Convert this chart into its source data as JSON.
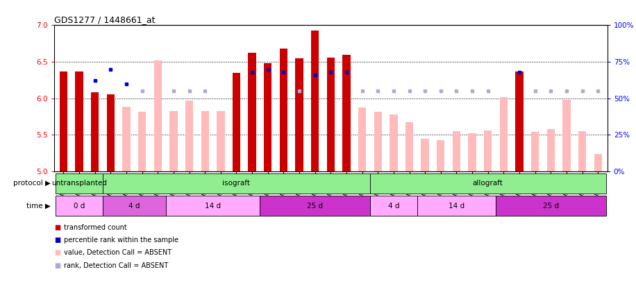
{
  "title": "GDS1277 / 1448661_at",
  "samples": [
    "GSM77008",
    "GSM77009",
    "GSM77010",
    "GSM77011",
    "GSM77012",
    "GSM77013",
    "GSM77014",
    "GSM77015",
    "GSM77016",
    "GSM77017",
    "GSM77018",
    "GSM77019",
    "GSM77020",
    "GSM77021",
    "GSM77022",
    "GSM77023",
    "GSM77024",
    "GSM77025",
    "GSM77026",
    "GSM77027",
    "GSM77028",
    "GSM77029",
    "GSM77030",
    "GSM77031",
    "GSM77032",
    "GSM77033",
    "GSM77034",
    "GSM77035",
    "GSM77036",
    "GSM77037",
    "GSM77038",
    "GSM77039",
    "GSM77040",
    "GSM77041",
    "GSM77042"
  ],
  "red_values": [
    6.37,
    6.37,
    6.08,
    6.05,
    null,
    null,
    null,
    null,
    null,
    null,
    null,
    6.35,
    6.62,
    6.48,
    6.68,
    6.55,
    6.93,
    6.56,
    6.6,
    null,
    null,
    null,
    null,
    null,
    null,
    null,
    null,
    null,
    null,
    6.37,
    null,
    null,
    null,
    null,
    null
  ],
  "pink_values": [
    null,
    null,
    null,
    null,
    5.88,
    5.82,
    6.52,
    5.83,
    5.97,
    5.83,
    5.83,
    null,
    null,
    null,
    null,
    null,
    null,
    null,
    null,
    5.87,
    5.82,
    5.78,
    5.67,
    5.45,
    5.43,
    5.55,
    5.52,
    5.56,
    6.02,
    null,
    5.54,
    5.58,
    5.98,
    5.55,
    5.24
  ],
  "blue_values": [
    null,
    null,
    62,
    70,
    60,
    null,
    null,
    null,
    null,
    null,
    null,
    null,
    68,
    70,
    68,
    null,
    66,
    68,
    68,
    null,
    null,
    null,
    null,
    null,
    null,
    null,
    null,
    null,
    null,
    68,
    null,
    null,
    null,
    null,
    null
  ],
  "light_blue_values": [
    null,
    null,
    null,
    null,
    null,
    55,
    null,
    55,
    55,
    55,
    null,
    null,
    null,
    null,
    null,
    55,
    null,
    null,
    null,
    55,
    55,
    55,
    55,
    55,
    55,
    55,
    55,
    55,
    null,
    null,
    55,
    55,
    55,
    55,
    55
  ],
  "proto_groups": [
    {
      "label": "untransplanted",
      "start": 0,
      "end": 2,
      "color": "#90ee90"
    },
    {
      "label": "isograft",
      "start": 3,
      "end": 19,
      "color": "#90ee90"
    },
    {
      "label": "allograft",
      "start": 20,
      "end": 34,
      "color": "#90ee90"
    }
  ],
  "time_groups": [
    {
      "label": "0 d",
      "start": 0,
      "end": 2,
      "color": "#ffaaff"
    },
    {
      "label": "4 d",
      "start": 3,
      "end": 6,
      "color": "#dd66dd"
    },
    {
      "label": "14 d",
      "start": 7,
      "end": 12,
      "color": "#ffaaff"
    },
    {
      "label": "25 d",
      "start": 13,
      "end": 19,
      "color": "#cc33cc"
    },
    {
      "label": "4 d",
      "start": 20,
      "end": 22,
      "color": "#ffaaff"
    },
    {
      "label": "14 d",
      "start": 23,
      "end": 27,
      "color": "#ffaaff"
    },
    {
      "label": "25 d",
      "start": 28,
      "end": 34,
      "color": "#cc33cc"
    }
  ],
  "ylim": [
    5.0,
    7.0
  ],
  "yticks": [
    5.0,
    5.5,
    6.0,
    6.5,
    7.0
  ],
  "right_yticks": [
    0,
    25,
    50,
    75,
    100
  ],
  "right_ylim": [
    0,
    100
  ],
  "red_color": "#cc0000",
  "pink_color": "#ffbbbb",
  "blue_color": "#0000cc",
  "light_blue_color": "#aaaadd"
}
